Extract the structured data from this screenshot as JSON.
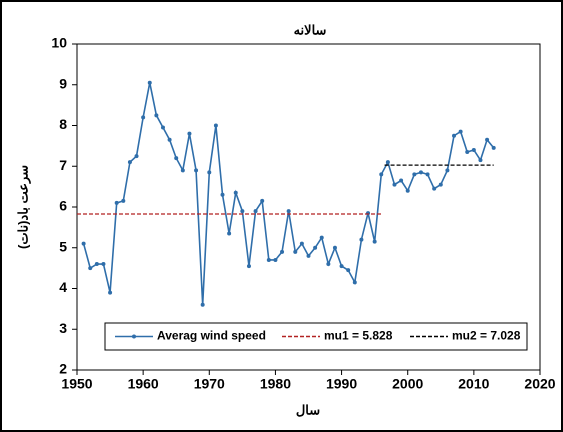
{
  "chart_data": {
    "type": "line",
    "title": "سالانه",
    "x_label": "سال",
    "y_label": "سرعت باد(نات)",
    "xlim": [
      1950,
      2020
    ],
    "xticks": [
      1950,
      1960,
      1970,
      1980,
      1990,
      2000,
      2010,
      2020
    ],
    "ylim": [
      2,
      10
    ],
    "yticks": [
      2,
      3,
      4,
      5,
      6,
      7,
      8,
      9,
      10
    ],
    "legend": "bottom",
    "series": [
      {
        "name": "Averag wind speed",
        "color": "#2f6eaa",
        "style": "solid",
        "marker": true,
        "x": [
          1951,
          1952,
          1953,
          1954,
          1955,
          1956,
          1957,
          1958,
          1959,
          1960,
          1961,
          1962,
          1963,
          1964,
          1965,
          1966,
          1967,
          1968,
          1969,
          1970,
          1971,
          1972,
          1973,
          1974,
          1975,
          1976,
          1977,
          1978,
          1979,
          1980,
          1981,
          1982,
          1983,
          1984,
          1985,
          1986,
          1987,
          1988,
          1989,
          1990,
          1991,
          1992,
          1993,
          1994,
          1995,
          1996,
          1997,
          1998,
          1999,
          2000,
          2001,
          2002,
          2003,
          2004,
          2005,
          2006,
          2007,
          2008,
          2009,
          2010,
          2011,
          2012,
          2013
        ],
        "values": [
          5.1,
          4.5,
          4.6,
          4.6,
          3.9,
          6.1,
          6.15,
          7.1,
          7.25,
          8.2,
          9.05,
          8.25,
          7.95,
          7.65,
          7.2,
          6.9,
          7.8,
          6.9,
          3.6,
          6.85,
          8.0,
          6.3,
          5.35,
          6.35,
          5.9,
          4.55,
          5.9,
          6.15,
          4.7,
          4.7,
          4.9,
          5.9,
          4.9,
          5.1,
          4.8,
          5.0,
          5.25,
          4.6,
          5.0,
          4.55,
          4.45,
          4.15,
          5.2,
          5.85,
          5.15,
          6.8,
          7.1,
          6.55,
          6.65,
          6.4,
          6.8,
          6.85,
          6.8,
          6.45,
          6.55,
          6.9,
          7.75,
          7.85,
          7.35,
          7.4,
          7.15,
          7.65,
          7.45
        ]
      },
      {
        "name": "mu1 = 5.828",
        "color": "#b22222",
        "style": "dashed",
        "marker": false,
        "x": [
          1950,
          1996
        ],
        "values": [
          5.828,
          5.828
        ]
      },
      {
        "name": "mu2 = 7.028",
        "color": "#000000",
        "style": "dashed",
        "marker": false,
        "x": [
          1996.5,
          2013
        ],
        "values": [
          7.028,
          7.028
        ]
      }
    ]
  }
}
